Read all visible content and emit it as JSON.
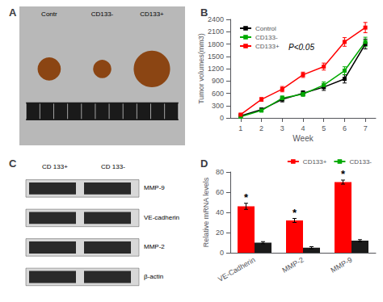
{
  "chart_data": [
    {
      "type": "photo",
      "title": "A",
      "annotations": [
        "Contr",
        "CD133-",
        "CD133+"
      ],
      "color": "#8B4513"
    },
    {
      "type": "line",
      "title": "B",
      "x": [
        1,
        2,
        3,
        4,
        5,
        6,
        7
      ],
      "xlim": [
        0.5,
        7.5
      ],
      "xticks": [
        1,
        2,
        3,
        4,
        5,
        6,
        7
      ],
      "ylim": [
        0,
        2400
      ],
      "yticks": [
        0,
        300,
        600,
        900,
        1200,
        1500,
        1800,
        2100,
        2400
      ],
      "xlabel": "Week",
      "ylabel": "Tumor volumes(mm3)",
      "annotation": "P<0.05",
      "legend": "upper left",
      "grid": false,
      "marker": "square",
      "series": [
        {
          "name": "Control",
          "color": "#000000",
          "values": [
            50,
            200,
            450,
            600,
            750,
            950,
            1800
          ],
          "errors": [
            20,
            40,
            60,
            60,
            80,
            100,
            120
          ]
        },
        {
          "name": "CD133-",
          "color": "#00aa00",
          "values": [
            30,
            180,
            480,
            580,
            800,
            1150,
            1850
          ],
          "errors": [
            15,
            35,
            55,
            55,
            75,
            95,
            115
          ]
        },
        {
          "name": "CD133+",
          "color": "#ff0000",
          "values": [
            80,
            450,
            700,
            1050,
            1250,
            1850,
            2200
          ],
          "errors": [
            25,
            45,
            65,
            65,
            85,
            105,
            125
          ]
        }
      ]
    },
    {
      "type": "blot",
      "title": "C",
      "annotations": [
        "CD 133+",
        "CD 133-"
      ],
      "categories": [
        "MMP-9",
        "VE-cadherin",
        "MMP-2",
        "β-actin"
      ]
    },
    {
      "type": "bar",
      "title": "D",
      "categories": [
        "VE-Cadherin",
        "MMP-2",
        "MMP-9"
      ],
      "ylim": [
        0,
        80
      ],
      "yticks": [
        0,
        20,
        40,
        60,
        80
      ],
      "ylabel": "Relative mRNA levels",
      "legend": "upper right",
      "grid": false,
      "series": [
        {
          "name": "CD133+",
          "color": "#ff0000",
          "values": [
            46,
            32,
            70
          ],
          "errors": [
            3,
            2,
            2
          ],
          "annotations": [
            "*",
            "*",
            "*"
          ]
        },
        {
          "name": "CD133-",
          "color": "#1a1a1a",
          "values": [
            10,
            5,
            12
          ],
          "errors": [
            1,
            1,
            1
          ]
        }
      ]
    }
  ]
}
